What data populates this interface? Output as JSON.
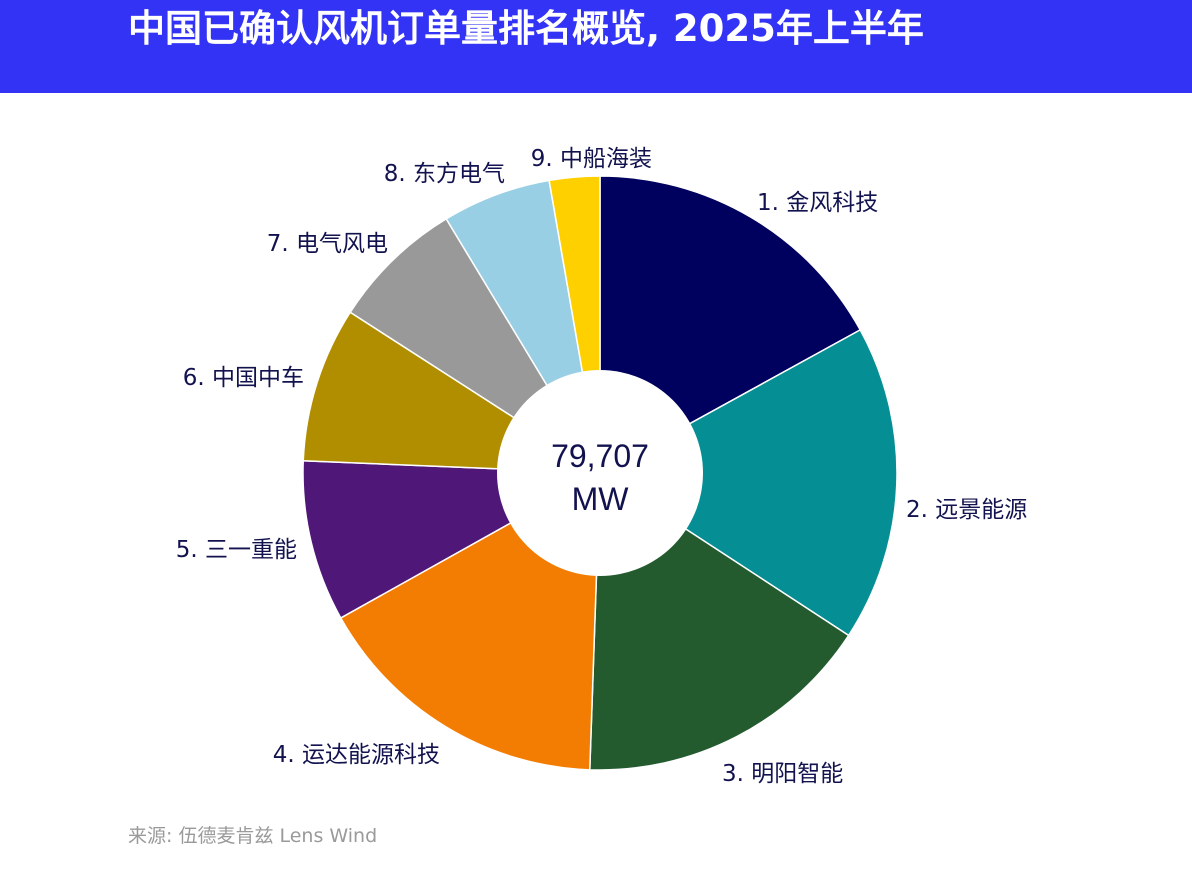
{
  "header": {
    "title": "中国已确认风机订单量排名概览, 2025年上半年"
  },
  "chart_data": {
    "type": "pie",
    "style": "donut",
    "total_label": {
      "value": "79,707",
      "unit": "MW"
    },
    "categories": [
      "1. 金风科技",
      "2. 远景能源",
      "3. 明阳智能",
      "4. 运达能源科技",
      "5. 三一重能",
      "6. 中国中车",
      "7. 电气风电",
      "8. 东方电气",
      "9. 中船海装"
    ],
    "values": [
      15.5,
      15.7,
      14.9,
      14.9,
      8.0,
      7.7,
      6.6,
      5.4,
      2.5
    ],
    "value_unit": "percent (estimated from slice angles)",
    "colors": [
      "#00005e",
      "#058f94",
      "#235b2f",
      "#f37d03",
      "#4f1878",
      "#b18e00",
      "#999999",
      "#99cfe4",
      "#ffd000"
    ],
    "start": "12 o'clock, clockwise",
    "label_color": "#12124e",
    "legend": "none (labels placed next to slices)"
  },
  "footer": {
    "source": "来源: 伍德麦肯兹 Lens Wind"
  }
}
